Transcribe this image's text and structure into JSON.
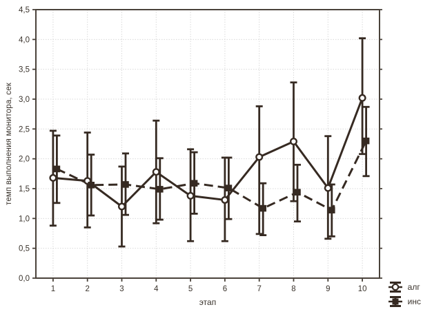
{
  "chart_data": {
    "type": "line",
    "title": "",
    "xlabel": "этап",
    "ylabel": "темп выполнения монитора, сек",
    "x": [
      1,
      2,
      3,
      4,
      5,
      6,
      7,
      8,
      9,
      10
    ],
    "x_tick_labels": [
      "1",
      "2",
      "3",
      "4",
      "5",
      "6",
      "7",
      "8",
      "9",
      "10"
    ],
    "y_tick_labels": [
      "0,0",
      "0,5",
      "1,0",
      "1,5",
      "2,0",
      "2,5",
      "3,0",
      "3,5",
      "4,0",
      "4,5"
    ],
    "ylim": [
      0,
      4.5
    ],
    "y_tick_step": 0.5,
    "grid": true,
    "legend_position": "bottom-right",
    "series": [
      {
        "name": "алг",
        "marker": "open-circle",
        "line_style": "solid",
        "values": [
          1.68,
          1.63,
          1.2,
          1.78,
          1.38,
          1.31,
          2.03,
          2.29,
          1.51,
          3.02
        ],
        "error_low": [
          0.88,
          0.85,
          0.53,
          0.92,
          0.62,
          0.62,
          0.74,
          1.29,
          0.66,
          2.08
        ],
        "error_high": [
          2.47,
          2.44,
          1.87,
          2.64,
          2.16,
          2.02,
          2.88,
          3.28,
          2.38,
          4.02
        ]
      },
      {
        "name": "инс",
        "marker": "filled-square",
        "line_style": "dashed",
        "values": [
          1.83,
          1.56,
          1.57,
          1.49,
          1.59,
          1.51,
          1.17,
          1.44,
          1.14,
          2.3
        ],
        "error_low": [
          1.26,
          1.05,
          1.06,
          0.98,
          1.08,
          0.99,
          0.72,
          0.95,
          0.7,
          1.71
        ],
        "error_high": [
          2.39,
          2.07,
          2.09,
          2.01,
          2.11,
          2.02,
          1.59,
          1.9,
          1.57,
          2.87
        ]
      }
    ],
    "colors": {
      "series": "#362a22",
      "grid": "#d9d9d9",
      "frame": "#4a423a",
      "text": "#3a332c",
      "background": "#ffffff"
    }
  }
}
